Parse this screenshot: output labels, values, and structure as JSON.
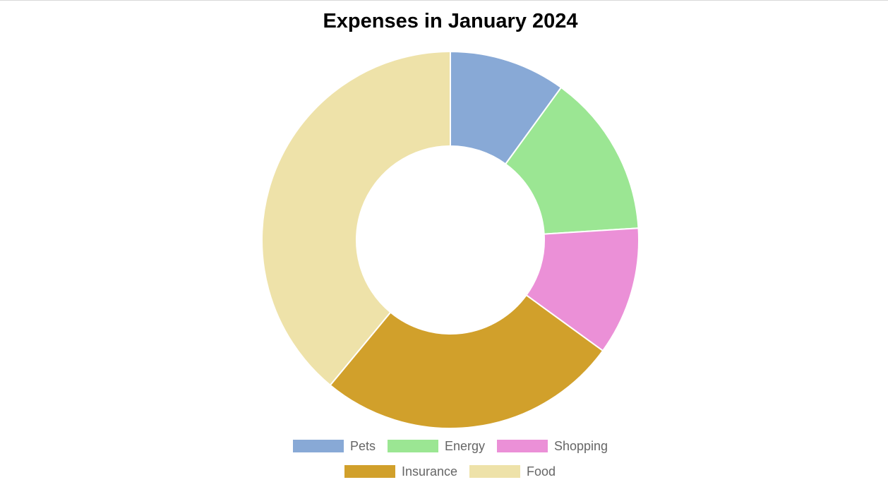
{
  "chart_data": {
    "type": "pie",
    "variant": "doughnut",
    "title": "Expenses in January 2024",
    "categories": [
      "Pets",
      "Energy",
      "Shopping",
      "Insurance",
      "Food"
    ],
    "values": [
      10,
      14,
      11,
      26,
      39
    ],
    "colors": [
      "#88A9D6",
      "#9BE693",
      "#EB90D7",
      "#D1A02B",
      "#EEE2A9"
    ],
    "legend_position": "bottom",
    "start_angle": "top",
    "direction": "clockwise"
  }
}
